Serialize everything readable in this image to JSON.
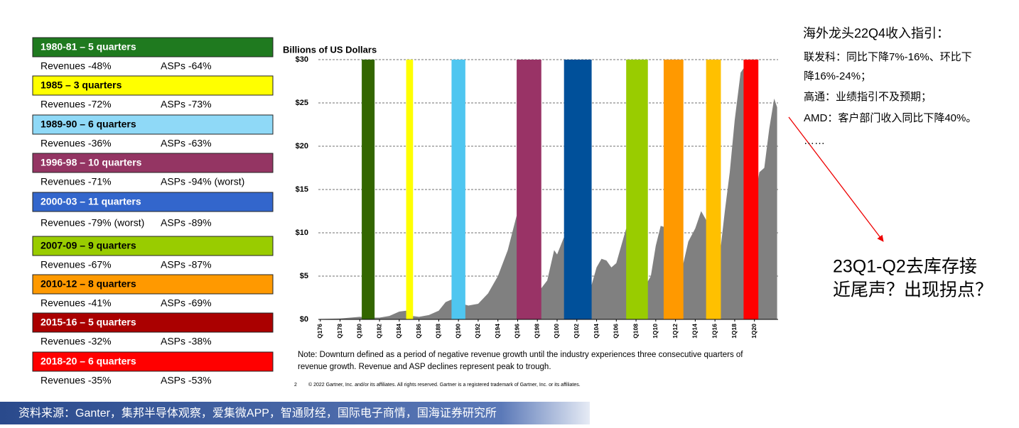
{
  "chart_data": {
    "type": "area",
    "title": "Billions of US Dollars",
    "color": "#808080",
    "grid": true,
    "xlim": [
      1975.8,
      2022.4
    ],
    "ylim": [
      0,
      30
    ],
    "xticks": [
      {
        "value": 1976,
        "label": "Q176"
      },
      {
        "value": 1978,
        "label": "Q178"
      },
      {
        "value": 1980,
        "label": "Q180"
      },
      {
        "value": 1982,
        "label": "Q182"
      },
      {
        "value": 1984,
        "label": "Q184"
      },
      {
        "value": 1986,
        "label": "Q186"
      },
      {
        "value": 1988,
        "label": "Q188"
      },
      {
        "value": 1990,
        "label": "Q190"
      },
      {
        "value": 1992,
        "label": "Q192"
      },
      {
        "value": 1994,
        "label": "Q194"
      },
      {
        "value": 1996,
        "label": "Q196"
      },
      {
        "value": 1998,
        "label": "Q198"
      },
      {
        "value": 2000,
        "label": "Q100"
      },
      {
        "value": 2002,
        "label": "Q102"
      },
      {
        "value": 2004,
        "label": "Q104"
      },
      {
        "value": 2006,
        "label": "Q106"
      },
      {
        "value": 2008,
        "label": "Q108"
      },
      {
        "value": 2010,
        "label": "1Q10"
      },
      {
        "value": 2012,
        "label": "1Q12"
      },
      {
        "value": 2014,
        "label": "1Q14"
      },
      {
        "value": 2016,
        "label": "1Q16"
      },
      {
        "value": 2018,
        "label": "1Q18"
      },
      {
        "value": 2020,
        "label": "1Q20"
      }
    ],
    "yticks": [
      {
        "value": 0,
        "label": "$0"
      },
      {
        "value": 5,
        "label": "$5"
      },
      {
        "value": 10,
        "label": "$10"
      },
      {
        "value": 15,
        "label": "$15"
      },
      {
        "value": 20,
        "label": "$20"
      },
      {
        "value": 25,
        "label": "$25"
      },
      {
        "value": 30,
        "label": "$30"
      }
    ],
    "x": [
      1976,
      1978,
      1980,
      1981,
      1982,
      1983,
      1984,
      1984.7,
      1985.3,
      1986,
      1987,
      1988,
      1988.7,
      1989.3,
      1990.7,
      1991,
      1992,
      1993,
      1994,
      1995,
      1995.9,
      1996.5,
      1997,
      1997.5,
      1998.4,
      1999,
      1999.7,
      2000,
      2000.7,
      2001.5,
      2002,
      2002.5,
      2003.5,
      2004,
      2004.5,
      2005,
      2005.5,
      2006,
      2006.5,
      2007,
      2007.5,
      2008,
      2008.5,
      2009,
      2009.5,
      2010,
      2010.5,
      2010.8,
      2011.5,
      2012,
      2012.5,
      2012.8,
      2013.3,
      2014,
      2014.6,
      2015.1,
      2015.6,
      2016.6,
      2017,
      2017.5,
      2018,
      2018.6,
      2018.9,
      2019.3,
      2019.8,
      2020.2,
      2020.5,
      2021,
      2021.5,
      2022,
      2022.3
    ],
    "values": [
      0.05,
      0.1,
      0.3,
      0.2,
      0.2,
      0.4,
      0.9,
      1.0,
      0.4,
      0.3,
      0.5,
      1.0,
      2.0,
      2.3,
      1.7,
      1.6,
      1.8,
      3.0,
      5.0,
      8.0,
      12.0,
      5.0,
      4.8,
      5.5,
      3.6,
      4.5,
      8.0,
      7.5,
      9.5,
      3.0,
      1.9,
      3.8,
      4.0,
      6.0,
      7.0,
      6.8,
      6.0,
      6.5,
      8.5,
      10.5,
      9.0,
      6.5,
      6.8,
      4.0,
      5.0,
      8.5,
      10.8,
      10.7,
      7.0,
      6.2,
      7.2,
      6.5,
      9.0,
      10.5,
      12.5,
      11.5,
      11.0,
      8.5,
      12.5,
      17.0,
      23.0,
      28.5,
      29.0,
      16.0,
      15.5,
      15.0,
      17.0,
      17.5,
      22.0,
      25.5,
      24.5
    ],
    "bands": [
      {
        "start": 1980.2,
        "end": 1981.5,
        "color": "#336600"
      },
      {
        "start": 1984.7,
        "end": 1985.4,
        "color": "#ffff00"
      },
      {
        "start": 1989.3,
        "end": 1990.7,
        "color": "#4fc6f0"
      },
      {
        "start": 1995.9,
        "end": 1998.4,
        "color": "#993366"
      },
      {
        "start": 2000.7,
        "end": 2003.5,
        "color": "#00509a"
      },
      {
        "start": 2007.0,
        "end": 2009.2,
        "color": "#99cc00"
      },
      {
        "start": 2010.8,
        "end": 2012.8,
        "color": "#ff9900"
      },
      {
        "start": 2015.1,
        "end": 2016.6,
        "color": "#ffc000"
      },
      {
        "start": 2018.9,
        "end": 2020.4,
        "color": "#ff0000"
      }
    ],
    "note": [
      "Note: Downturn defined as a period of negative revenue growth until the industry experiences three consecutive quarters of",
      "revenue growth. Revenue and ASP declines represent peak to trough."
    ],
    "page_number": "2",
    "copyright": "© 2022 Gartner, Inc. and/or its affiliates. All rights reserved. Gartner is a registered trademark of Gartner, Inc. or its affiliates."
  },
  "downturns": [
    {
      "label": "1980-81 – 5 quarters",
      "color": "#1f7a1f",
      "text_color": "#ffffff",
      "revenues": "Revenues -48%",
      "asps": "ASPs -64%"
    },
    {
      "label": "1985 – 3 quarters",
      "color": "#ffff00",
      "text_color": "#000000",
      "revenues": "Revenues -72%",
      "asps": "ASPs -73%"
    },
    {
      "label": "1989-90 – 6 quarters",
      "color": "#8fd9f7",
      "text_color": "#000000",
      "revenues": "Revenues -36%",
      "asps": "ASPs -63%"
    },
    {
      "label": "1996-98 – 10 quarters",
      "color": "#943563",
      "text_color": "#ffffff",
      "revenues": "Revenues -71%",
      "asps": "ASPs -94% (worst)"
    },
    {
      "label": "2000-03 – 11 quarters",
      "color": "#3366cc",
      "text_color": "#ffffff",
      "revenues": "Revenues -79% (worst)",
      "asps": "ASPs -89%"
    },
    {
      "label": "2007-09 – 9 quarters",
      "color": "#99cc00",
      "text_color": "#000000",
      "revenues": "Revenues -67%",
      "asps": "ASPs -87%"
    },
    {
      "label": "2010-12 – 8 quarters",
      "color": "#ff9900",
      "text_color": "#000000",
      "revenues": "Revenues -41%",
      "asps": "ASPs -69%"
    },
    {
      "label": "2015-16 – 5 quarters",
      "color": "#aa0000",
      "text_color": "#ffffff",
      "revenues": "Revenues -32%",
      "asps": "ASPs -38%"
    },
    {
      "label": "2018-20 – 6 quarters",
      "color": "#ff0000",
      "text_color": "#ffffff",
      "revenues": "Revenues -35%",
      "asps": "ASPs -53%"
    }
  ],
  "commentary": {
    "heading": "海外龙头22Q4收入指引：",
    "lines": [
      "联发科：同比下降7%-16%、环比下",
      "降16%-24%；",
      "高通：业绩指引不及预期；",
      "AMD：客户部门收入同比下降40%。",
      "……"
    ],
    "callout": [
      "23Q1-Q2去库存接",
      "近尾声？出现拐点？"
    ]
  },
  "source": "资料来源：Ganter，集邦半导体观察，爱集微APP，智通财经，国际电子商情，国海证券研究所"
}
